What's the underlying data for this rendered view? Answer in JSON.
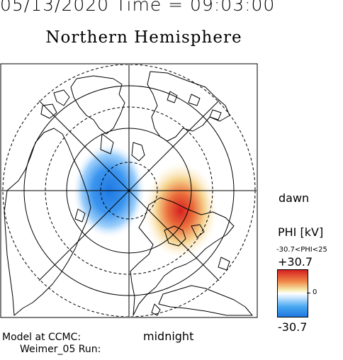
{
  "header": {
    "datetime": "05/13/2020 Time = 09:03:00",
    "title": "Northern Hemisphere"
  },
  "map": {
    "orientation_labels": {
      "right": "dawn",
      "bottom": "midnight"
    },
    "potential_pattern": [
      {
        "sign": "negative",
        "side": "dusk",
        "color": "#1f78e0"
      },
      {
        "sign": "positive",
        "side": "dawn",
        "color": "#d62020"
      }
    ]
  },
  "colorbar": {
    "label": "PHI [kV]",
    "range_text": "-30.7<PHI<25",
    "max_label": "+30.7",
    "zero_label": "0",
    "min_label": "-30.7",
    "colors": {
      "max": "#d62020",
      "mid": "#ffffff",
      "min": "#1f78e0"
    }
  },
  "footer": {
    "line1": "Model at CCMC:",
    "line2": "Weimer_05 Run:"
  }
}
